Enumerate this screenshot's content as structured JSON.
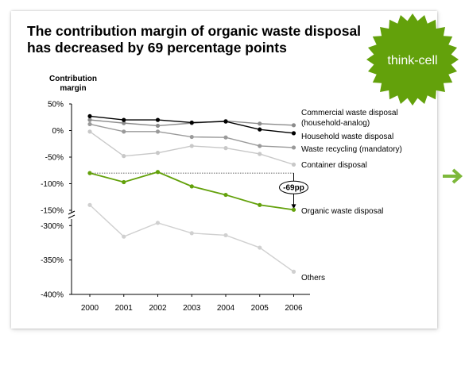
{
  "title_lines": [
    "The contribution margin of organic waste disposal",
    "has decreased by 69 percentage points"
  ],
  "badge": {
    "label": "think-cell",
    "color": "#63a10b"
  },
  "arrow_icon": {
    "name": "arrow-right-icon",
    "color": "#7db83a"
  },
  "chart_data": {
    "type": "line",
    "ylabel": [
      "Contribution",
      "margin"
    ],
    "x": [
      "2000",
      "2001",
      "2002",
      "2003",
      "2004",
      "2005",
      "2006"
    ],
    "y_ticks": [
      "50%",
      "0%",
      "-50%",
      "-100%",
      "-150%",
      "-300%",
      "-350%",
      "-400%"
    ],
    "axis_break": {
      "upper_segment": [
        -150,
        50
      ],
      "lower_segment": [
        -400,
        -260
      ]
    },
    "series": [
      {
        "name": "Commercial waste disposal (household-analog)",
        "label_lines": [
          "Commercial waste disposal",
          "(household-analog)"
        ],
        "color": "#000000",
        "values": [
          27,
          20,
          20,
          15,
          17,
          2,
          -5
        ]
      },
      {
        "name": "Household waste disposal",
        "label_lines": [
          "Household waste disposal"
        ],
        "color": "#8c8c8c",
        "values": [
          20,
          14,
          9,
          14,
          18,
          13,
          10
        ]
      },
      {
        "name": "Waste recycling (mandatory)",
        "label_lines": [
          "Waste recycling (mandatory)"
        ],
        "color": "#9a9a9a",
        "values": [
          12,
          -2,
          -2,
          -12,
          -13,
          -29,
          -32
        ]
      },
      {
        "name": "Container disposal",
        "label_lines": [
          "Container disposal"
        ],
        "color": "#c8c8c8",
        "values": [
          -2,
          -48,
          -42,
          -29,
          -33,
          -44,
          -64
        ]
      },
      {
        "name": "Organic waste disposal",
        "label_lines": [
          "Organic waste disposal"
        ],
        "color": "#63a10b",
        "values": [
          -80,
          -97,
          -78,
          -105,
          -121,
          -140,
          -149
        ]
      },
      {
        "name": "Others",
        "label_lines": [
          "Others"
        ],
        "color": "#d0d0d0",
        "values": [
          -270,
          -316,
          -296,
          -311,
          -314,
          -332,
          -367
        ]
      }
    ],
    "difference_annotation": {
      "label": "-69pp",
      "from": -80,
      "to": -149
    }
  }
}
